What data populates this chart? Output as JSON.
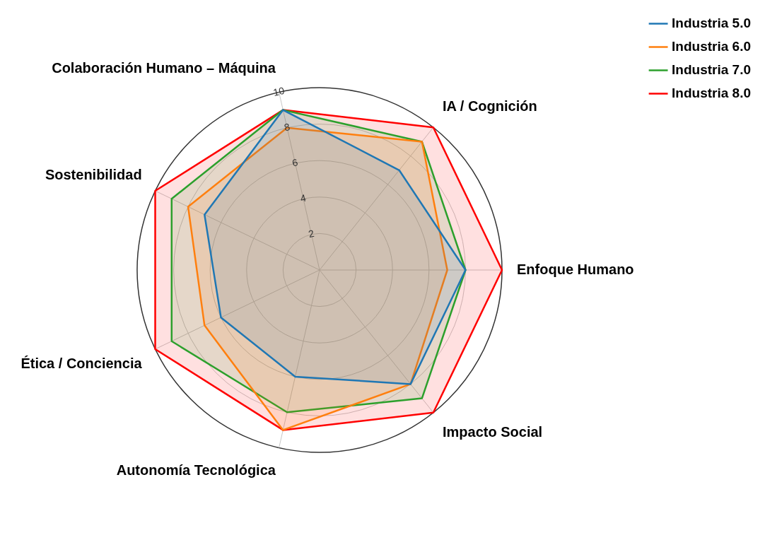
{
  "chart_data": {
    "type": "radar",
    "categories": [
      "Colaboración Humano – Máquina",
      "IA / Cognición",
      "Enfoque Humano",
      "Impacto Social",
      "Autonomía Tecnológica",
      "Ética / Conciencia",
      "Sostenibilidad"
    ],
    "series": [
      {
        "name": "Industria 5.0",
        "color": "#1f77b4",
        "values": [
          9,
          7,
          8,
          8,
          6,
          6,
          7
        ]
      },
      {
        "name": "Industria 6.0",
        "color": "#ff7f0e",
        "values": [
          8,
          9,
          7,
          8,
          9,
          7,
          8
        ]
      },
      {
        "name": "Industria 7.0",
        "color": "#2ca02c",
        "values": [
          9,
          9,
          8,
          9,
          8,
          9,
          9
        ]
      },
      {
        "name": "Industria 8.0",
        "color": "#ff0000",
        "values": [
          9,
          10,
          10,
          10,
          9,
          10,
          10
        ]
      }
    ],
    "ylim": [
      0,
      10
    ],
    "yticks": [
      2,
      4,
      6,
      8,
      10
    ],
    "grid": true,
    "legend": "top right",
    "marker": "none",
    "line_style": "solid"
  }
}
